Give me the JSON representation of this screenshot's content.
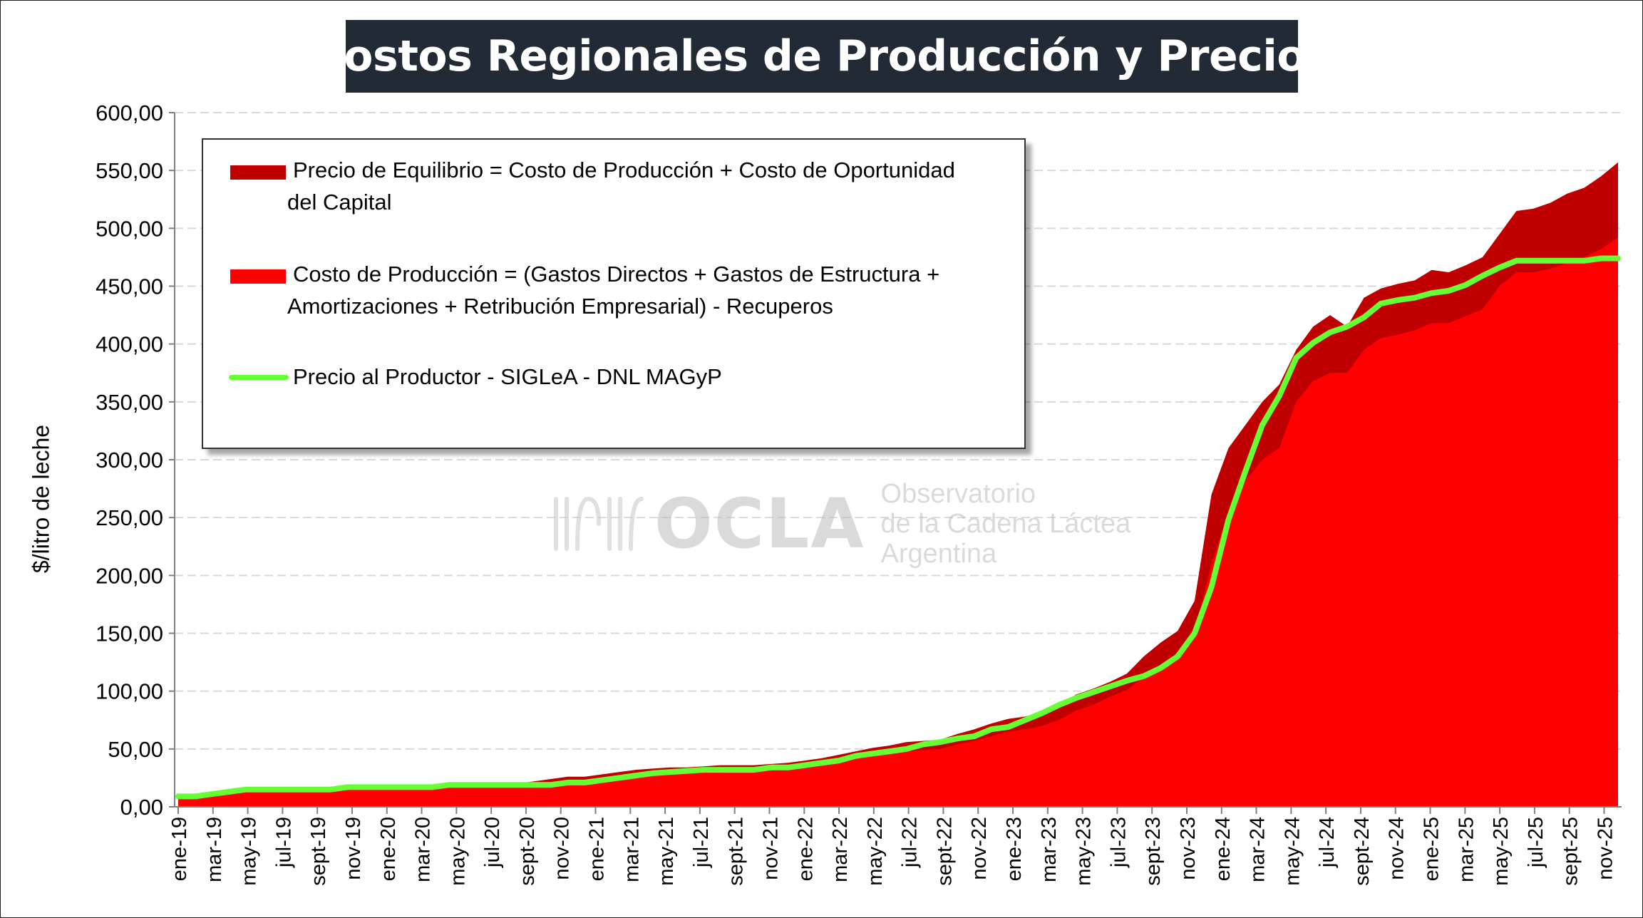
{
  "chart_data": {
    "type": "area",
    "title": "Costos Regionales de Producción y Precios",
    "ylabel": "$/litro de leche",
    "xlabel": "",
    "ylim": [
      0,
      600
    ],
    "yticks": [
      0,
      50,
      100,
      150,
      200,
      250,
      300,
      350,
      400,
      450,
      500,
      550,
      600
    ],
    "ytick_labels": [
      "0,00",
      "50,00",
      "100,00",
      "150,00",
      "200,00",
      "250,00",
      "300,00",
      "350,00",
      "400,00",
      "450,00",
      "500,00",
      "550,00",
      "600,00"
    ],
    "grid": true,
    "legend_position": "top-left",
    "x_tick_labels": [
      "ene-19",
      "mar-19",
      "may-19",
      "jul-19",
      "sept-19",
      "nov-19",
      "ene-20",
      "mar-20",
      "may-20",
      "jul-20",
      "sept-20",
      "nov-20",
      "ene-21",
      "mar-21",
      "may-21",
      "jul-21",
      "sept-21",
      "nov-21",
      "ene-22",
      "mar-22",
      "may-22",
      "jul-22",
      "sept-22",
      "nov-22",
      "ene-23",
      "mar-23",
      "may-23",
      "jul-23",
      "sept-23",
      "nov-23",
      "ene-24",
      "mar-24",
      "may-24",
      "jul-24",
      "sept-24",
      "nov-24",
      "ene-25",
      "mar-25",
      "may-25",
      "jul-25",
      "sept-25",
      "nov-25"
    ],
    "series": [
      {
        "name": "Precio de Equilibrio = Costo de Producción + Costo de Oportunidad del Capital",
        "color": "#c00000",
        "values": [
          9,
          10,
          12,
          14,
          16,
          16,
          16,
          16,
          16,
          16,
          18,
          18,
          18,
          18,
          18,
          18,
          20,
          20,
          20,
          20,
          20,
          22,
          24,
          26,
          26,
          28,
          30,
          32,
          33,
          34,
          34,
          35,
          36,
          36,
          36,
          37,
          38,
          40,
          42,
          45,
          48,
          51,
          53,
          56,
          57,
          58,
          63,
          67,
          72,
          76,
          78,
          82,
          88,
          97,
          102,
          108,
          115,
          130,
          142,
          152,
          178,
          270,
          310,
          330,
          350,
          365,
          395,
          415,
          425,
          415,
          440,
          448,
          452,
          455,
          464,
          462,
          468,
          475,
          495,
          515,
          517,
          522,
          530,
          535,
          545,
          557
        ]
      },
      {
        "name": "Costo de Producción = (Gastos Directos + Gastos de Estructura + Amortizaciones + Retribución Empresarial) - Recuperos",
        "color": "#ff0000",
        "values": [
          6,
          8,
          10,
          12,
          13,
          13,
          13,
          13,
          13,
          13,
          15,
          15,
          15,
          15,
          15,
          15,
          17,
          17,
          17,
          17,
          17,
          19,
          21,
          22,
          22,
          24,
          26,
          27,
          28,
          29,
          30,
          31,
          31,
          31,
          31,
          32,
          33,
          34,
          36,
          39,
          42,
          44,
          46,
          48,
          49,
          50,
          54,
          57,
          61,
          65,
          67,
          70,
          75,
          83,
          88,
          95,
          101,
          112,
          123,
          131,
          150,
          210,
          255,
          282,
          300,
          310,
          350,
          368,
          375,
          375,
          395,
          405,
          408,
          412,
          418,
          418,
          424,
          430,
          450,
          462,
          462,
          465,
          470,
          475,
          482,
          492
        ]
      },
      {
        "name": "Precio al Productor - SIGLeA - DNL MAGyP",
        "color": "#66ff33",
        "values": [
          9,
          9,
          11,
          13,
          15,
          15,
          15,
          15,
          15,
          15,
          17,
          17,
          17,
          17,
          17,
          17,
          19,
          19,
          19,
          19,
          19,
          19,
          19,
          21,
          21,
          23,
          25,
          27,
          29,
          30,
          31,
          32,
          32,
          32,
          32,
          34,
          34,
          36,
          38,
          40,
          44,
          46,
          48,
          50,
          54,
          56,
          59,
          61,
          67,
          69,
          75,
          81,
          88,
          94,
          99,
          104,
          109,
          113,
          120,
          130,
          150,
          190,
          248,
          290,
          330,
          355,
          388,
          401,
          410,
          415,
          423,
          435,
          438,
          440,
          444,
          446,
          451,
          459,
          466,
          472,
          472,
          472,
          472,
          472,
          474,
          474
        ]
      }
    ]
  },
  "legend": {
    "item1_line1": "Precio de Equilibrio = Costo de Producción + Costo de Oportunidad",
    "item1_line2": "del Capital",
    "item2_line1": "Costo de Producción = (Gastos Directos + Gastos de Estructura +",
    "item2_line2": "Amortizaciones + Retribución Empresarial) - Recuperos",
    "item3_line1": "Precio al Productor - SIGLeA - DNL MAGyP"
  },
  "watermark": {
    "logo_text": "OCLA",
    "line1": "Observatorio",
    "line2": "de la Cadena Láctea",
    "line3": "Argentina"
  },
  "colors": {
    "title_bg": "#222a35",
    "equilibrio": "#c00000",
    "costo": "#ff0000",
    "precio": "#66ff33",
    "grid": "#d9d9d9"
  }
}
